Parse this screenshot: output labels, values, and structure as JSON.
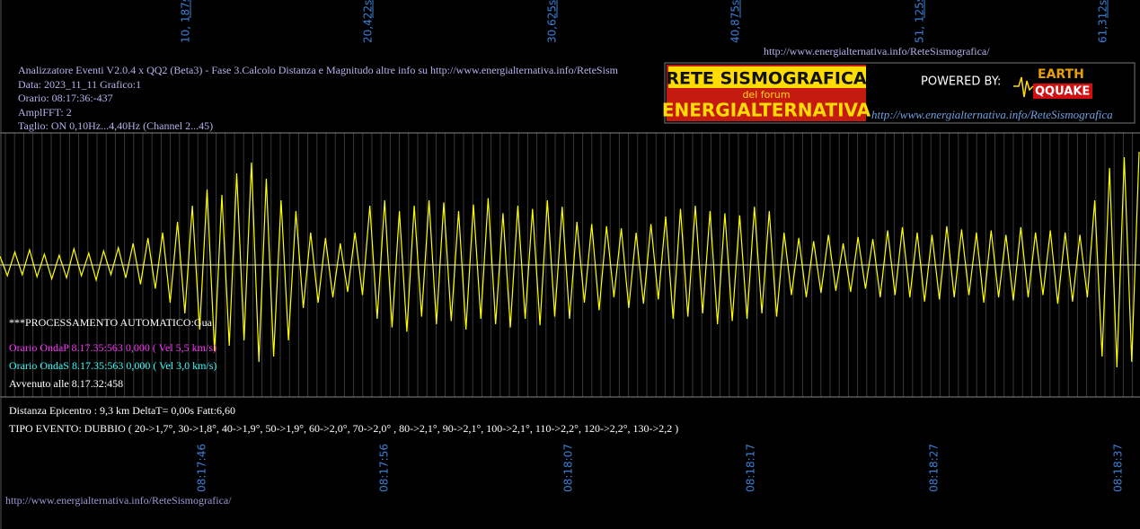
{
  "header_url": "http://www.energialternativa.info/ReteSismografica/",
  "info": [
    "Analizzatore Eventi V2.0.4 x QQ2 (Beta3) - Fase 3.Calcolo Distanza e Magnitudo altre info su http://www.energialternativa.info/ReteSism",
    "Data: 2023_11_11 Grafico:1",
    "Orario: 08:17:36:-437",
    "AmplFFT: 2",
    "Taglio: ON 0,10Hz...4,40Hz       (Channel 2...45)"
  ],
  "logo": {
    "line1": "RETE SISMOGRAFICA",
    "line2": "del forum",
    "line3": "ENERGIALTERNATIVA",
    "powered": "POWERED BY:",
    "brand1": "EARTH",
    "brand2": "QQUAKE",
    "url": "http://www.energialternativa.info/ReteSismografica"
  },
  "top_ticks": [
    "10, 187s",
    "20,422s",
    "30,625s",
    "40,875s",
    "51, 125s",
    "61,312s"
  ],
  "bottom_ticks": [
    "08:17:46",
    "08:17:56",
    "08:18:07",
    "08:18:17",
    "08:18:27",
    "08:18:37"
  ],
  "processing": "***PROCESSAMENTO AUTOMATICO:Gua",
  "onda_p": "Orario OndaP 8.17.35:563  0,000 ( Vel 5,5 km/s)",
  "onda_s": "Orario OndaS 8.17.35:563  0,000 ( Vel 3,0 km/s)",
  "avvenuto": "Avvenuto alle 8.17.32:458",
  "distanza": "Distanza Epicentro : 9,3 km DeltaT= 0,00s  Fatt:6,60",
  "tipo": "TIPO EVENTO: DUBBIO ( 20->1,7°, 30->1,8°, 40->1,9°, 50->1,9°, 60->2,0°, 70->2,0° , 80->2,1°, 90->2,1°, 100->2,1°, 110->2,2°, 120->2,2°, 130->2,2 )",
  "footer_url": "http://www.energialternativa.info/ReteSismografica/",
  "waveform": {
    "values": [
      8,
      -10,
      12,
      -9,
      14,
      -11,
      10,
      -13,
      9,
      -12,
      15,
      -10,
      11,
      -14,
      13,
      -9,
      16,
      -12,
      20,
      -18,
      25,
      -22,
      30,
      -35,
      40,
      -45,
      55,
      -60,
      70,
      -80,
      65,
      -75,
      85,
      -70,
      95,
      -90,
      80,
      -85,
      60,
      -70,
      50,
      -40,
      30,
      -35,
      25,
      -30,
      20,
      -25,
      30,
      -28,
      55,
      -50,
      60,
      -58,
      50,
      -62,
      55,
      -48,
      60,
      -55,
      58,
      -52,
      50,
      -60,
      56,
      -50,
      62,
      -55,
      48,
      -58,
      55,
      -50,
      52,
      -56,
      60,
      -48,
      54,
      -50,
      40,
      -35,
      38,
      -42,
      36,
      -30,
      34,
      -40,
      30,
      -36,
      38,
      -32,
      45,
      -50,
      52,
      -48,
      55,
      -45,
      50,
      -55,
      48,
      -52,
      46,
      -50,
      54,
      -45,
      50,
      -48,
      30,
      -28,
      25,
      -30,
      22,
      -26,
      28,
      -24,
      20,
      -25,
      26,
      -22,
      24,
      -30,
      32,
      -28,
      35,
      -30,
      30,
      -34,
      28,
      -32,
      36,
      -30,
      33,
      -28,
      30,
      -35,
      32,
      -30,
      28,
      -33,
      35,
      -30,
      30,
      -28,
      32,
      -36,
      30,
      -34,
      28,
      -30,
      60,
      -85,
      90,
      -95,
      100,
      -90,
      105
    ]
  }
}
